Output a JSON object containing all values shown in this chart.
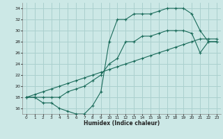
{
  "xlabel": "Humidex (Indice chaleur)",
  "background_color": "#cce8e6",
  "grid_color": "#aad0ce",
  "line_color": "#1a6b5a",
  "xlim": [
    -0.5,
    23.5
  ],
  "ylim": [
    15.0,
    35.0
  ],
  "xticks": [
    0,
    1,
    2,
    3,
    4,
    5,
    6,
    7,
    8,
    9,
    10,
    11,
    12,
    13,
    14,
    15,
    16,
    17,
    18,
    19,
    20,
    21,
    22,
    23
  ],
  "yticks": [
    16,
    18,
    20,
    22,
    24,
    26,
    28,
    30,
    32,
    34
  ],
  "series1_x": [
    0,
    1,
    2,
    3,
    4,
    5,
    6,
    7,
    8,
    9,
    10,
    11,
    12,
    13,
    14,
    15,
    16,
    17,
    18,
    19,
    20,
    21,
    22,
    23
  ],
  "series1_y": [
    18,
    18,
    17,
    17,
    16,
    15.5,
    15,
    15,
    16.5,
    19,
    28,
    32,
    32,
    33,
    33,
    33,
    33.5,
    34,
    34,
    34,
    33,
    30,
    28,
    28
  ],
  "series2_x": [
    0,
    1,
    2,
    3,
    4,
    5,
    6,
    7,
    8,
    9,
    10,
    11,
    12,
    13,
    14,
    15,
    16,
    17,
    18,
    19,
    20,
    21,
    22,
    23
  ],
  "series2_y": [
    18,
    18.5,
    19,
    19.5,
    20,
    20.5,
    21,
    21.5,
    22,
    22.5,
    23,
    23.5,
    24,
    24.5,
    25,
    25.5,
    26,
    26.5,
    27,
    27.5,
    28,
    28.5,
    28.5,
    28.5
  ],
  "series3_x": [
    0,
    1,
    2,
    3,
    4,
    5,
    6,
    7,
    8,
    9,
    10,
    11,
    12,
    13,
    14,
    15,
    16,
    17,
    18,
    19,
    20,
    21,
    22,
    23
  ],
  "series3_y": [
    18,
    18,
    18,
    18,
    18,
    19,
    19.5,
    20,
    21,
    22,
    24,
    25,
    28,
    28,
    29,
    29,
    29.5,
    30,
    30,
    30,
    29.5,
    26,
    28,
    28
  ]
}
